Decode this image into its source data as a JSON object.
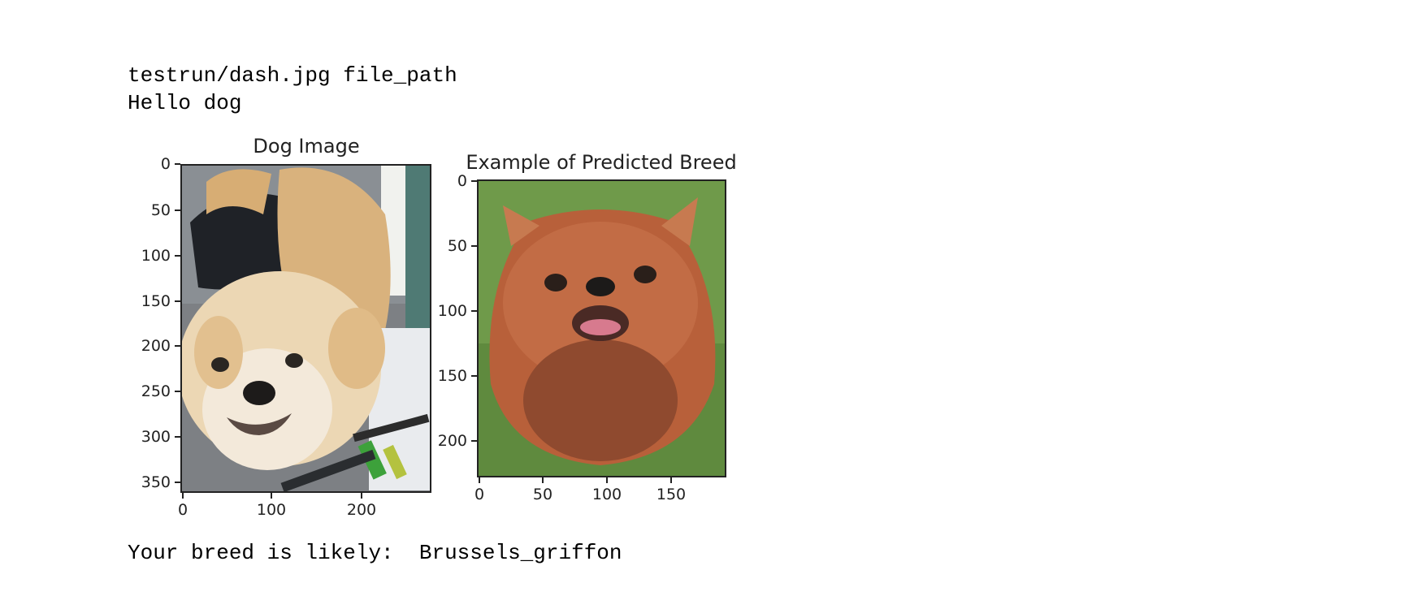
{
  "output": {
    "line1": "testrun/dash.jpg file_path",
    "line2": "Hello dog",
    "result": "Your breed is likely:  Brussels_griffon"
  },
  "figures": [
    {
      "title": "Dog Image",
      "image_desc": "dog-photo",
      "x_ticks": [
        "0",
        "100",
        "200"
      ],
      "y_ticks": [
        "0",
        "50",
        "100",
        "150",
        "200",
        "250",
        "300",
        "350"
      ]
    },
    {
      "title": "Example of Predicted Breed",
      "image_desc": "brussels-griffon-photo",
      "x_ticks": [
        "0",
        "50",
        "100",
        "150"
      ],
      "y_ticks": [
        "0",
        "50",
        "100",
        "150",
        "200"
      ]
    }
  ],
  "colors": {
    "text": "#000000",
    "axis": "#222222",
    "dog1_fur": "#e7c79a",
    "dog2_fur": "#b8603a",
    "grass": "#6f9a4a"
  }
}
